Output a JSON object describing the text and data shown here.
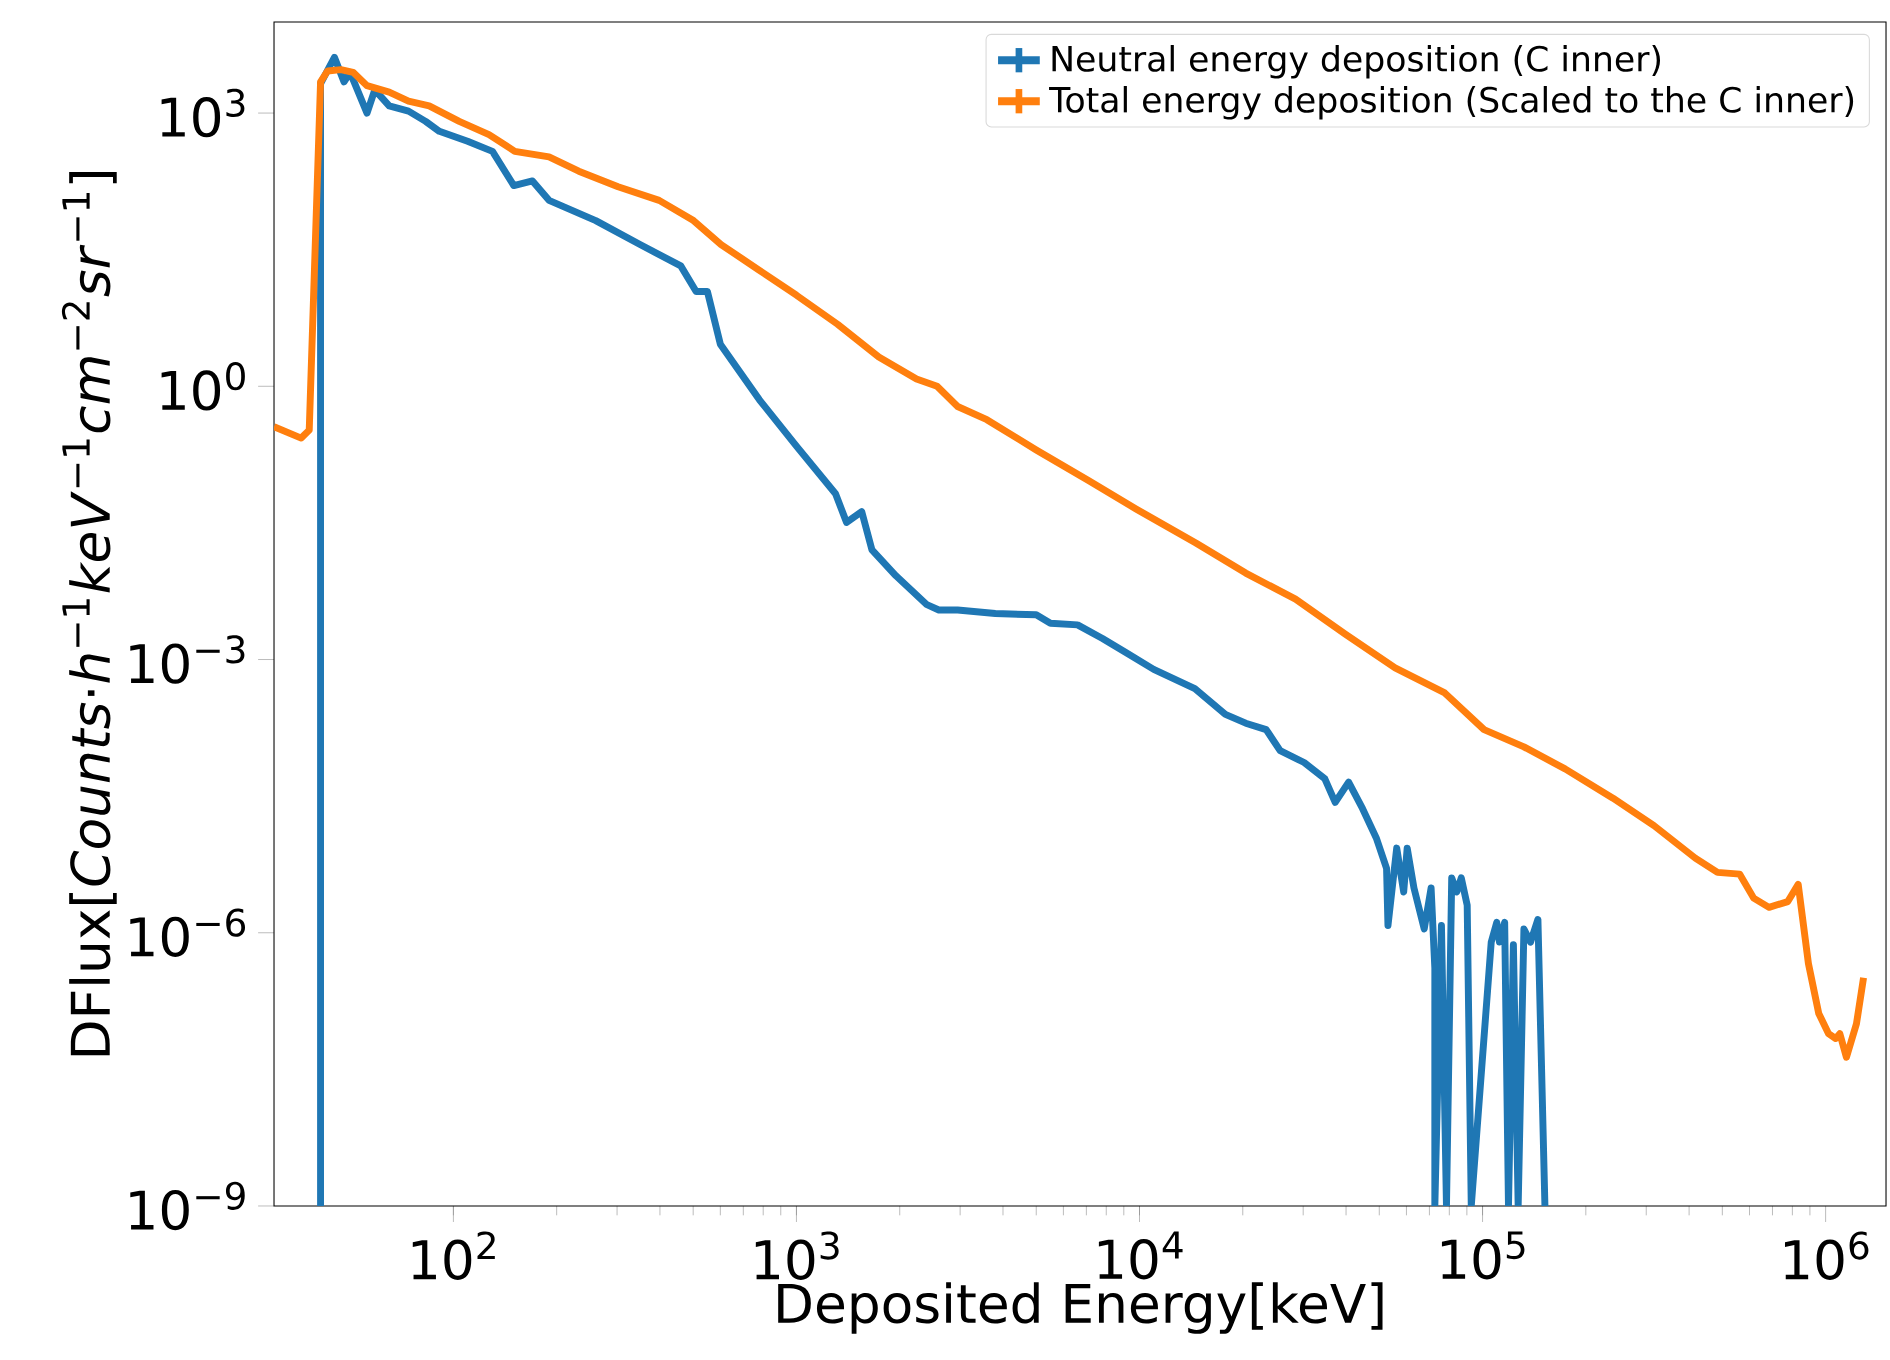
{
  "chart_data": {
    "type": "line",
    "xlabel": "Deposited Energy[keV]",
    "ylabel": "DFlux[*Counts*·*h*$^{−1}$*keV*$^{−1}$*cm*$^{−2}$*sr*$^{−1}$]",
    "log": "xy",
    "legend": "top right",
    "xlim": [
      30,
      1500000
    ],
    "ylim": [
      1e-09,
      10000
    ],
    "xticks": [
      {
        "value": 100,
        "label": "10$^{2}$"
      },
      {
        "value": 1000,
        "label": "10$^{3}$"
      },
      {
        "value": 10000,
        "label": "10$^{4}$"
      },
      {
        "value": 100000,
        "label": "10$^{5}$"
      },
      {
        "value": 1000000,
        "label": "10$^{6}$"
      }
    ],
    "yticks": [
      {
        "value": 1e-09,
        "label": "10$^{−9}$"
      },
      {
        "value": 1e-06,
        "label": "10$^{−6}$"
      },
      {
        "value": 0.001,
        "label": "10$^{−3}$"
      },
      {
        "value": 1,
        "label": "10$^{0}$"
      },
      {
        "value": 1000,
        "label": "10$^{3}$"
      }
    ],
    "series": [
      {
        "name": "Neutral energy deposition (C inner)",
        "color": "#1f77b4",
        "x": [
          41,
          41,
          45,
          48,
          50,
          56,
          59,
          65,
          74,
          83,
          91,
          110,
          130,
          150,
          170,
          190,
          260,
          350,
          460,
          510,
          550,
          600,
          780,
          1000,
          1300,
          1400,
          1550,
          1660,
          1950,
          2400,
          2600,
          2950,
          3800,
          5000,
          5500,
          6600,
          7800,
          9100,
          11000,
          14500,
          17800,
          20400,
          23400,
          25700,
          30200,
          34700,
          37200,
          40700,
          44700,
          49000,
          52500,
          53000,
          56200,
          58900,
          60300,
          63100,
          67600,
          70800,
          72600,
          72600,
          75900,
          78500,
          81300,
          84100,
          86700,
          90200,
          92700,
          106000,
          110000,
          112000,
          116000,
          119000,
          123000,
          127000,
          132000,
          138000,
          145000,
          152000
        ],
        "values": [
          1e-09,
          2100,
          4100,
          2200,
          2800,
          1000,
          1800,
          1200,
          1050,
          810,
          630,
          490,
          380,
          160,
          180,
          110,
          66,
          36,
          21,
          11,
          11,
          2.9,
          0.71,
          0.22,
          0.066,
          0.032,
          0.042,
          0.016,
          0.0083,
          0.004,
          0.0035,
          0.0035,
          0.0032,
          0.0031,
          0.0025,
          0.0024,
          0.0017,
          0.0012,
          0.00078,
          0.00048,
          0.00025,
          0.0002,
          0.00017,
          0.0001,
          7.4e-05,
          4.9e-05,
          2.7e-05,
          4.5e-05,
          2.3e-05,
          1.1e-05,
          5.1e-06,
          1.2e-06,
          8.5e-06,
          2.8e-06,
          8.5e-06,
          3.1e-06,
          1.1e-06,
          3.1e-06,
          4.1e-07,
          1e-09,
          1.2e-06,
          1e-09,
          4e-06,
          2.8e-06,
          4e-06,
          2e-06,
          1e-09,
          7.9e-07,
          1.3e-06,
          7.9e-07,
          1.3e-06,
          1e-09,
          7.4e-07,
          1e-09,
          1.1e-06,
          7.9e-07,
          1.4e-06,
          1e-09
        ]
      },
      {
        "name": "Total energy deposition (Scaled to the C inner)",
        "color": "#ff7f0e",
        "x": [
          30,
          36,
          38,
          41,
          43,
          47,
          51,
          56,
          65,
          74,
          85,
          104,
          127,
          151,
          190,
          232,
          302,
          398,
          501,
          603,
          776,
          1000,
          1318,
          1738,
          2239,
          2570,
          2950,
          3590,
          5000,
          7080,
          9770,
          14600,
          20400,
          28500,
          39800,
          55600,
          77600,
          101000,
          132000,
          174000,
          240000,
          316000,
          417000,
          484000,
          562000,
          617000,
          684000,
          776000,
          832000,
          891000,
          955000,
          1020000,
          1070000,
          1100000,
          1150000,
          1230000,
          1290000
        ],
        "values": [
          0.36,
          0.27,
          0.33,
          2200,
          2900,
          3000,
          2800,
          2000,
          1700,
          1350,
          1200,
          810,
          580,
          380,
          330,
          230,
          155,
          110,
          66,
          36,
          19,
          10,
          4.8,
          2.1,
          1.2,
          1.0,
          0.6,
          0.43,
          0.2,
          0.093,
          0.045,
          0.019,
          0.0089,
          0.0046,
          0.0019,
          0.00081,
          0.00043,
          0.00017,
          0.00011,
          6.3e-05,
          3e-05,
          1.5e-05,
          6.6e-06,
          4.6e-06,
          4.4e-06,
          2.4e-06,
          1.9e-06,
          2.2e-06,
          3.4e-06,
          4.6e-07,
          1.3e-07,
          7.8e-08,
          6.9e-08,
          7.8e-08,
          4.3e-08,
          1e-07,
          3.2e-07
        ]
      }
    ]
  }
}
